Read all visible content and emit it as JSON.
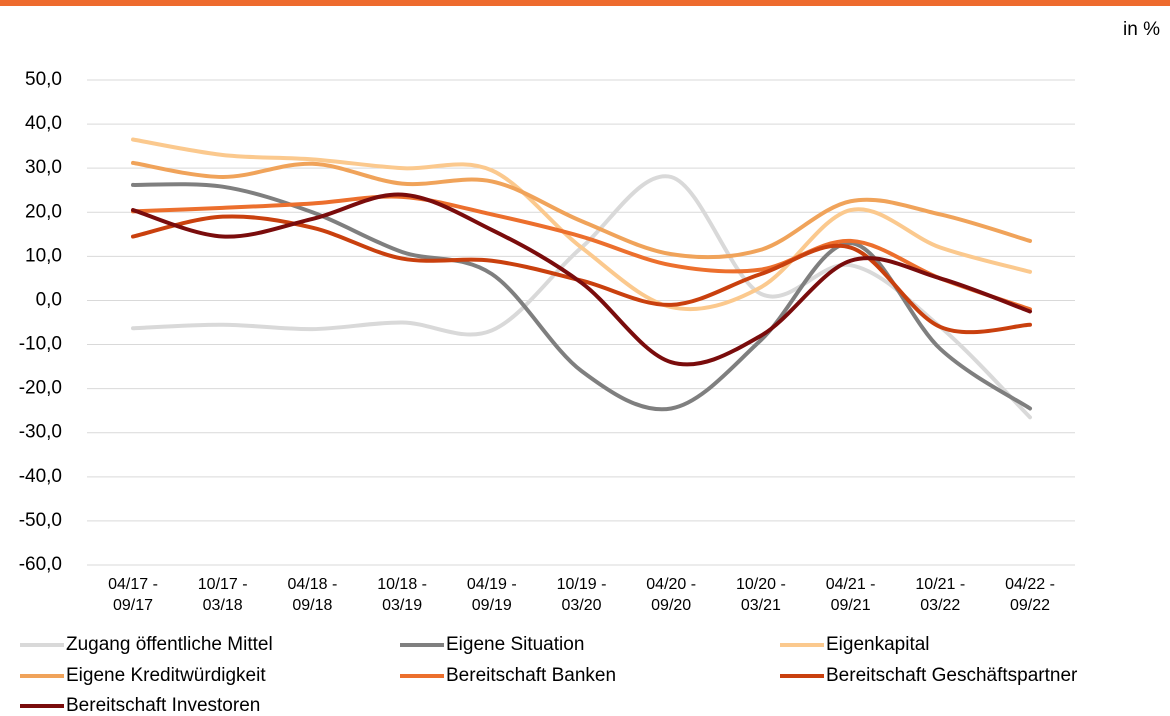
{
  "chart_data": {
    "type": "line",
    "y_unit_label": "in %",
    "categories": [
      "04/17 -\n09/17",
      "10/17 -\n03/18",
      "04/18 -\n09/18",
      "10/18 -\n03/19",
      "04/19 -\n09/19",
      "10/19 -\n03/20",
      "04/20 -\n09/20",
      "10/20 -\n03/21",
      "04/21 -\n09/21",
      "10/21 -\n03/22",
      "04/22 -\n09/22"
    ],
    "series": [
      {
        "name": "Zugang öffentliche Mittel",
        "color": "#d9d9d9",
        "values": [
          -6.3,
          -5.5,
          -6.5,
          -5,
          -6.8,
          12,
          28,
          1.5,
          8,
          -6,
          -26.5
        ]
      },
      {
        "name": "Eigene Situation",
        "color": "#7f7f7f",
        "values": [
          26.2,
          25.8,
          20,
          11,
          6,
          -16,
          -24.5,
          -9,
          13,
          -11,
          -24.5
        ]
      },
      {
        "name": "Eigenkapital",
        "color": "#fbc98e",
        "values": [
          36.5,
          33,
          32,
          30,
          29.5,
          12,
          -1.5,
          3,
          20.5,
          12,
          6.5
        ]
      },
      {
        "name": "Eigene Kreditwürdigkeit",
        "color": "#f0a35a",
        "values": [
          31.2,
          28,
          31,
          26.5,
          27,
          18,
          10.5,
          11.5,
          22.5,
          19.5,
          13.5
        ]
      },
      {
        "name": "Bereitschaft Banken",
        "color": "#ec6f2d",
        "values": [
          20.2,
          21,
          22,
          23.5,
          19.5,
          14.5,
          8,
          7,
          13.5,
          5,
          -2
        ]
      },
      {
        "name": "Bereitschaft Geschäftspartner",
        "color": "#c9400e",
        "values": [
          14.5,
          19,
          16.5,
          9.5,
          9,
          4.5,
          -1,
          6,
          12,
          -6,
          -5.5
        ]
      },
      {
        "name": "Bereitschaft Investoren",
        "color": "#7a0c0c",
        "values": [
          20.5,
          14.5,
          18.5,
          24,
          16,
          4,
          -14,
          -8,
          9,
          5,
          -2.5
        ]
      }
    ],
    "ylim": [
      -60,
      50
    ],
    "yticks": [
      {
        "value": -60,
        "label": "-60,0"
      },
      {
        "value": -50,
        "label": "-50,0"
      },
      {
        "value": -40,
        "label": "-40,0"
      },
      {
        "value": -30,
        "label": "-30,0"
      },
      {
        "value": -20,
        "label": "-20,0"
      },
      {
        "value": -10,
        "label": "-10,0"
      },
      {
        "value": 0,
        "label": "0,0"
      },
      {
        "value": 10,
        "label": "10,0"
      },
      {
        "value": 20,
        "label": "20,0"
      },
      {
        "value": 30,
        "label": "30,0"
      },
      {
        "value": 40,
        "label": "40,0"
      },
      {
        "value": 50,
        "label": "50,0"
      }
    ],
    "grid": true
  }
}
